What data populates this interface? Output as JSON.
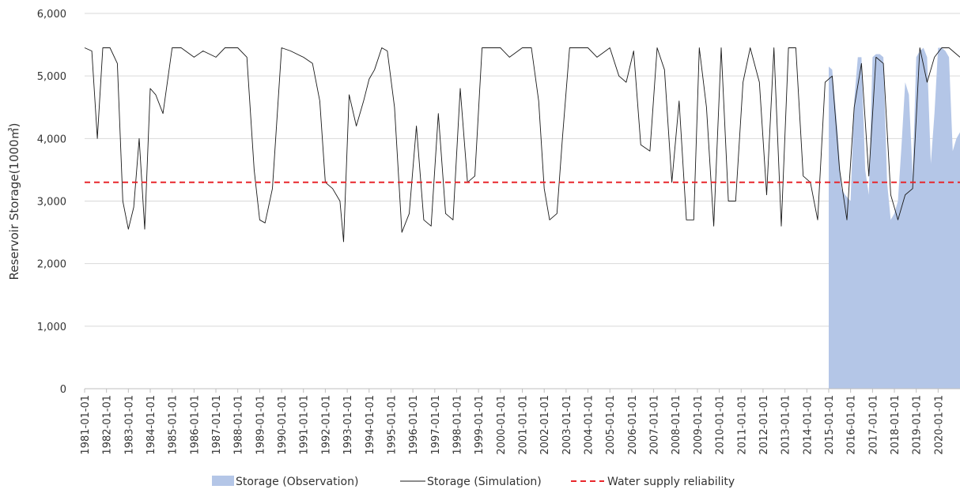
{
  "chart_data": {
    "type": "line",
    "title": "",
    "xlabel": "",
    "ylabel": "Reservoir Storage(1000㎥)",
    "ylim": [
      0,
      6000
    ],
    "yticks": [
      "0",
      "1,000",
      "2,000",
      "3,000",
      "4,000",
      "5,000",
      "6,000"
    ],
    "xlim": [
      "1981-01-01",
      "2020-12-31"
    ],
    "x_tick_labels": [
      "1981-01-01",
      "1982-01-01",
      "1983-01-01",
      "1984-01-01",
      "1985-01-01",
      "1986-01-01",
      "1987-01-01",
      "1988-01-01",
      "1989-01-01",
      "1990-01-01",
      "1991-01-01",
      "1992-01-01",
      "1993-01-01",
      "1994-01-01",
      "1995-01-01",
      "1996-01-01",
      "1997-01-01",
      "1998-01-01",
      "1999-01-01",
      "2000-01-01",
      "2001-01-01",
      "2002-01-01",
      "2003-01-01",
      "2004-01-01",
      "2005-01-01",
      "2006-01-01",
      "2007-01-01",
      "2008-01-01",
      "2009-01-01",
      "2010-01-01",
      "2011-01-01",
      "2012-01-01",
      "2013-01-01",
      "2014-01-01",
      "2015-01-01",
      "2016-01-01",
      "2017-01-01",
      "2018-01-01",
      "2019-01-01",
      "2020-01-01"
    ],
    "grid": "horizontal",
    "legend": "bottom",
    "colors": {
      "observation": "#b4c6e7",
      "simulation": "#1a1a1a",
      "reliability": "#e8262b",
      "grid": "#d9d9d9",
      "axis": "#bfbfbf"
    },
    "series": [
      {
        "name": "Storage (Observation)",
        "type": "area",
        "x": [
          "2015-01-01",
          "2015-03-01",
          "2015-06-01",
          "2015-08-01",
          "2015-10-01",
          "2016-01-01",
          "2016-03-01",
          "2016-05-01",
          "2016-07-01",
          "2016-09-01",
          "2016-11-01",
          "2017-01-01",
          "2017-03-01",
          "2017-05-01",
          "2017-07-01",
          "2017-09-01",
          "2017-11-01",
          "2018-01-01",
          "2018-03-01",
          "2018-05-01",
          "2018-07-01",
          "2018-09-01",
          "2018-11-01",
          "2019-01-01",
          "2019-03-01",
          "2019-05-01",
          "2019-07-01",
          "2019-09-01",
          "2019-11-01",
          "2020-01-01",
          "2020-03-01",
          "2020-05-01",
          "2020-07-01",
          "2020-09-01",
          "2020-11-01",
          "2020-12-31"
        ],
        "y": [
          5150,
          5100,
          4100,
          3200,
          3100,
          3000,
          4600,
          5300,
          5300,
          3500,
          3100,
          5300,
          5350,
          5350,
          5300,
          3300,
          2700,
          2800,
          3000,
          3900,
          4900,
          4700,
          3400,
          5300,
          5400,
          5450,
          5300,
          3600,
          4400,
          5450,
          5450,
          5400,
          5300,
          3800,
          4000,
          4100
        ]
      },
      {
        "name": "Storage (Simulation)",
        "type": "line",
        "x": [
          "1981-01-01",
          "1981-05-01",
          "1981-08-01",
          "1981-11-01",
          "1982-03-01",
          "1982-07-01",
          "1982-10-01",
          "1983-01-01",
          "1983-04-01",
          "1983-07-01",
          "1983-10-01",
          "1984-01-01",
          "1984-04-01",
          "1984-08-01",
          "1985-01-01",
          "1985-06-01",
          "1986-01-01",
          "1986-06-01",
          "1987-01-01",
          "1987-06-01",
          "1988-01-01",
          "1988-06-01",
          "1988-10-01",
          "1989-01-01",
          "1989-04-01",
          "1989-08-01",
          "1990-01-01",
          "1990-06-01",
          "1991-01-01",
          "1991-06-01",
          "1991-10-01",
          "1992-01-01",
          "1992-05-01",
          "1992-09-01",
          "1992-11-01",
          "1993-02-01",
          "1993-06-01",
          "1993-10-01",
          "1994-01-01",
          "1994-04-01",
          "1994-08-01",
          "1994-11-01",
          "1995-03-01",
          "1995-07-01",
          "1995-11-01",
          "1996-03-01",
          "1996-07-01",
          "1996-11-01",
          "1997-03-01",
          "1997-07-01",
          "1997-11-01",
          "1998-03-01",
          "1998-07-01",
          "1998-11-01",
          "1999-03-01",
          "1999-08-01",
          "2000-01-01",
          "2000-06-01",
          "2001-01-01",
          "2001-06-01",
          "2001-10-01",
          "2002-01-01",
          "2002-04-01",
          "2002-08-01",
          "2002-11-01",
          "2003-03-01",
          "2003-08-01",
          "2004-01-01",
          "2004-06-01",
          "2005-01-01",
          "2005-06-01",
          "2005-10-01",
          "2006-02-01",
          "2006-06-01",
          "2006-11-01",
          "2007-03-01",
          "2007-07-01",
          "2007-11-01",
          "2008-03-01",
          "2008-07-01",
          "2008-11-01",
          "2009-02-01",
          "2009-06-01",
          "2009-10-01",
          "2010-02-01",
          "2010-06-01",
          "2010-10-01",
          "2011-02-01",
          "2011-06-01",
          "2011-11-01",
          "2012-03-01",
          "2012-07-01",
          "2012-11-01",
          "2013-03-01",
          "2013-07-01",
          "2013-11-01",
          "2014-03-01",
          "2014-07-01",
          "2014-11-01",
          "2015-03-01",
          "2015-07-01",
          "2015-11-01",
          "2016-03-01",
          "2016-07-01",
          "2016-11-01",
          "2017-03-01",
          "2017-07-01",
          "2017-11-01",
          "2018-03-01",
          "2018-07-01",
          "2018-11-01",
          "2019-03-01",
          "2019-07-01",
          "2019-11-01",
          "2020-03-01",
          "2020-07-01",
          "2020-12-31"
        ],
        "y": [
          5450,
          5400,
          4000,
          5450,
          5450,
          5200,
          3000,
          2550,
          2900,
          4000,
          2550,
          4800,
          4700,
          4400,
          5450,
          5450,
          5300,
          5400,
          5300,
          5450,
          5450,
          5300,
          3500,
          2700,
          2650,
          3200,
          5450,
          5400,
          5300,
          5200,
          4600,
          3300,
          3200,
          3000,
          2350,
          4700,
          4200,
          4600,
          4950,
          5100,
          5450,
          5400,
          4500,
          2500,
          2800,
          4200,
          2700,
          2600,
          4400,
          2800,
          2700,
          4800,
          3300,
          3400,
          5450,
          5450,
          5450,
          5300,
          5450,
          5450,
          4600,
          3200,
          2700,
          2800,
          4000,
          5450,
          5450,
          5450,
          5300,
          5450,
          5000,
          4900,
          5400,
          3900,
          3800,
          5450,
          5100,
          3300,
          4600,
          2700,
          2700,
          5450,
          4500,
          2600,
          5450,
          3000,
          3000,
          4900,
          5450,
          4900,
          3100,
          5450,
          2600,
          5450,
          5450,
          3400,
          3300,
          2700,
          4900,
          5000,
          3500,
          2700,
          4500,
          5200,
          3400,
          5300,
          5200,
          3100,
          2700,
          3100,
          3200,
          5450,
          4900,
          5300,
          5450,
          5450,
          5300
        ]
      },
      {
        "name": "Water supply reliability",
        "type": "reference-line",
        "y": 3300
      }
    ]
  }
}
